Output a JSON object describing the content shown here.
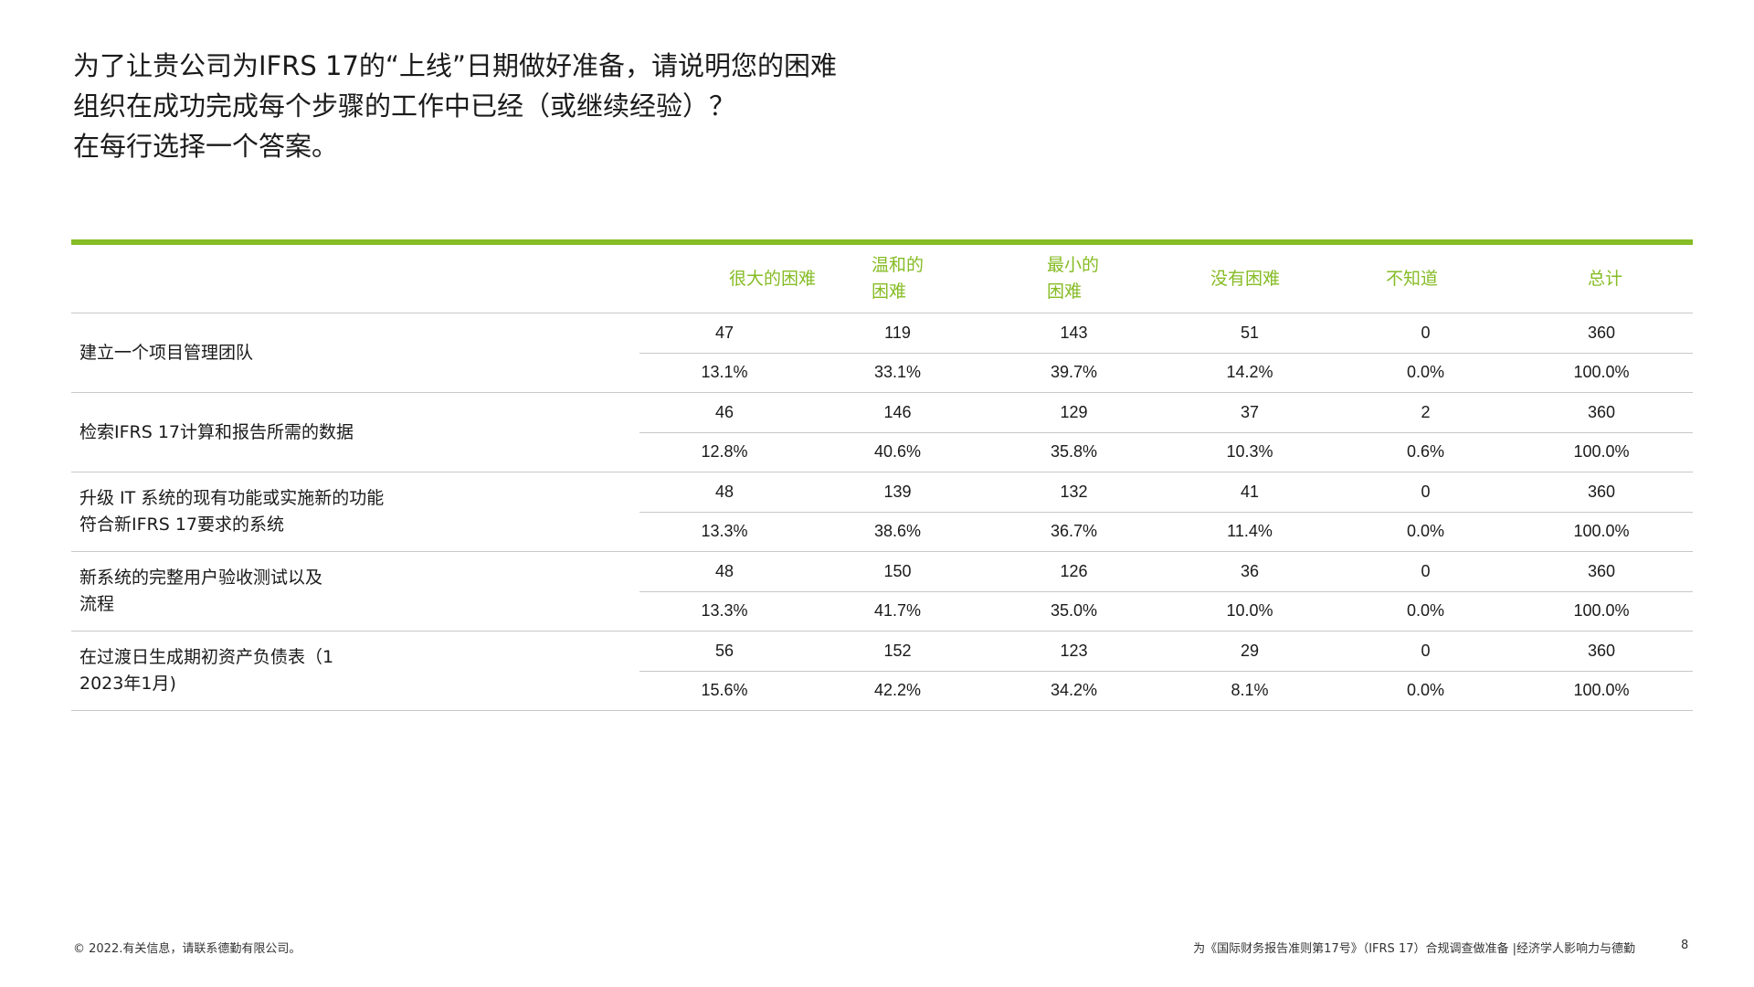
{
  "title": {
    "line1": "为了让贵公司为IFRS 17的“上线”日期做好准备，请说明您的困难",
    "line2": "组织在成功完成每个步骤的工作中已经（或继续经验）？",
    "line3": "在每行选择一个答案。"
  },
  "table": {
    "header_row_label": "",
    "columns": [
      {
        "line1": "很大的困难",
        "line2": ""
      },
      {
        "line1": "温和的",
        "line2": "困难"
      },
      {
        "line1": "最小的",
        "line2": "困难"
      },
      {
        "line1": "没有困难",
        "line2": ""
      },
      {
        "line1": "不知道",
        "line2": ""
      },
      {
        "line1": "总计",
        "line2": ""
      }
    ],
    "rows": [
      {
        "label_line1": "建立一个项目管理团队",
        "label_line2": "",
        "counts": [
          "47",
          "119",
          "143",
          "51",
          "0",
          "360"
        ],
        "percents": [
          "13.1%",
          "33.1%",
          "39.7%",
          "14.2%",
          "0.0%",
          "100.0%"
        ]
      },
      {
        "label_line1": "检索IFRS 17计算和报告所需的数据",
        "label_line2": "",
        "counts": [
          "46",
          "146",
          "129",
          "37",
          "2",
          "360"
        ],
        "percents": [
          "12.8%",
          "40.6%",
          "35.8%",
          "10.3%",
          "0.6%",
          "100.0%"
        ]
      },
      {
        "label_line1": "升级 IT 系统的现有功能或实施新的功能",
        "label_line2": "符合新IFRS 17要求的系统",
        "counts": [
          "48",
          "139",
          "132",
          "41",
          "0",
          "360"
        ],
        "percents": [
          "13.3%",
          "38.6%",
          "36.7%",
          "11.4%",
          "0.0%",
          "100.0%"
        ]
      },
      {
        "label_line1": "新系统的完整用户验收测试以及",
        "label_line2": "流程",
        "counts": [
          "48",
          "150",
          "126",
          "36",
          "0",
          "360"
        ],
        "percents": [
          "13.3%",
          "41.7%",
          "35.0%",
          "10.0%",
          "0.0%",
          "100.0%"
        ]
      },
      {
        "label_line1": "在过渡日生成期初资产负债表（1",
        "label_line2": "2023年1月)",
        "counts": [
          "56",
          "152",
          "123",
          "29",
          "0",
          "360"
        ],
        "percents": [
          "15.6%",
          "42.2%",
          "34.2%",
          "8.1%",
          "0.0%",
          "100.0%"
        ]
      }
    ]
  },
  "footer": {
    "left": "© 2022.有关信息，请联系德勤有限公司。",
    "right": "为《国际财务报告准则第17号》（IFRS 17）合规调查做准备 |经济学人影响力与德勤",
    "page_number": "8"
  },
  "colors": {
    "accent": "#86bc25",
    "rule": "#c8c8c8",
    "text": "#1a1a1a"
  }
}
